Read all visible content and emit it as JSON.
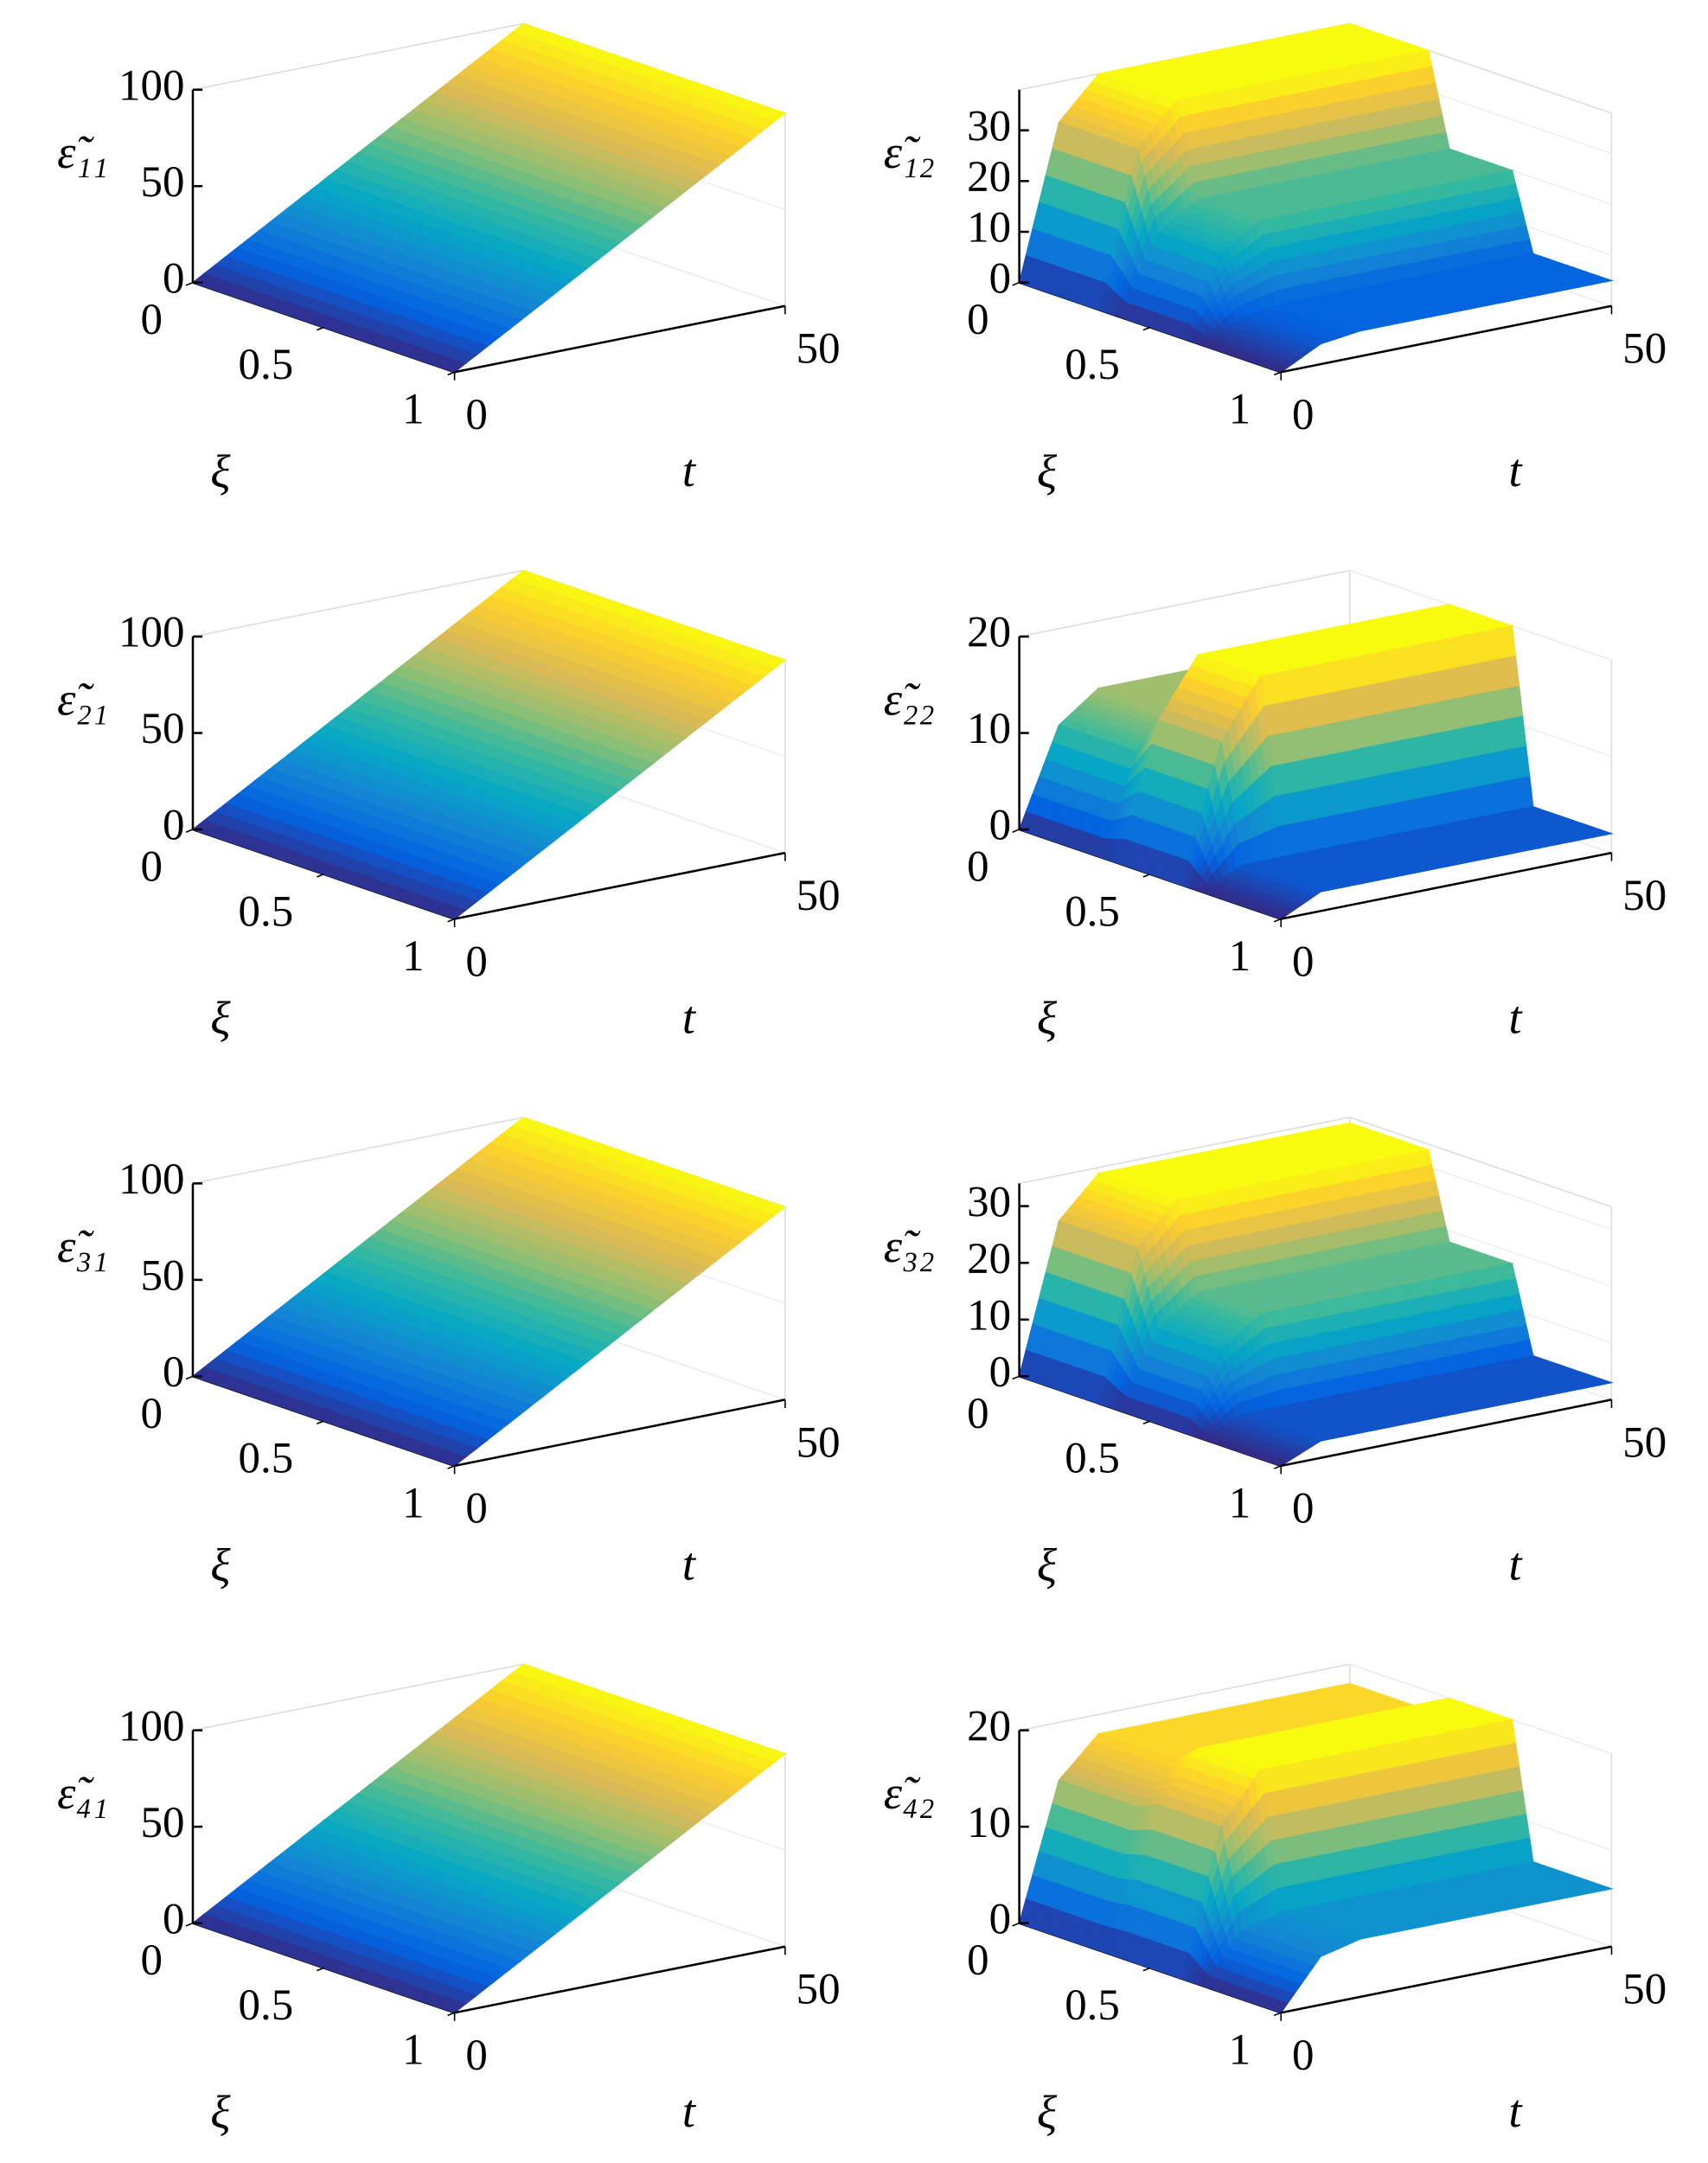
{
  "chart_data": [
    {
      "type": "surface",
      "zlabel": "ε̃₁₁",
      "xlabel": "ξ",
      "ylabel": "t",
      "xlim": [
        0,
        1
      ],
      "xticks": [
        0,
        0.5,
        1
      ],
      "ylim": [
        0,
        50
      ],
      "yticks": [
        0,
        50
      ],
      "zlim": [
        0,
        100
      ],
      "zticks": [
        0,
        50,
        100
      ],
      "x": [
        0,
        1
      ],
      "y": [
        0,
        50
      ],
      "z": [
        [
          0,
          100
        ],
        [
          0,
          100
        ]
      ]
    },
    {
      "type": "surface",
      "zlabel": "ε̃₁₂",
      "xlabel": "ξ",
      "ylabel": "t",
      "xlim": [
        0,
        1
      ],
      "xticks": [
        0,
        0.5,
        1
      ],
      "ylim": [
        0,
        50
      ],
      "yticks": [
        0,
        50
      ],
      "zlim": [
        0,
        38
      ],
      "zticks": [
        0,
        10,
        20,
        30
      ],
      "x": [
        0,
        0.3,
        0.38,
        0.62,
        0.7,
        1
      ],
      "y": [
        0,
        6,
        12,
        38,
        44,
        50
      ],
      "z": [
        [
          0,
          30,
          38,
          38,
          38,
          38
        ],
        [
          0,
          30,
          38,
          38,
          38,
          38
        ],
        [
          0,
          15,
          20,
          20,
          20,
          20
        ],
        [
          0,
          15,
          20,
          20,
          20,
          20
        ],
        [
          0,
          4,
          5,
          5,
          5,
          5
        ],
        [
          0,
          4,
          5,
          5,
          5,
          5
        ]
      ]
    },
    {
      "type": "surface",
      "zlabel": "ε̃₂₁",
      "xlabel": "ξ",
      "ylabel": "t",
      "xlim": [
        0,
        1
      ],
      "xticks": [
        0,
        0.5,
        1
      ],
      "ylim": [
        0,
        50
      ],
      "yticks": [
        0,
        50
      ],
      "zlim": [
        0,
        100
      ],
      "zticks": [
        0,
        50,
        100
      ],
      "x": [
        0,
        1
      ],
      "y": [
        0,
        50
      ],
      "z": [
        [
          0,
          100
        ],
        [
          0,
          100
        ]
      ]
    },
    {
      "type": "surface",
      "zlabel": "ε̃₂₂",
      "xlabel": "ξ",
      "ylabel": "t",
      "xlim": [
        0,
        1
      ],
      "xticks": [
        0,
        0.5,
        1
      ],
      "ylim": [
        0,
        50
      ],
      "yticks": [
        0,
        50
      ],
      "zlim": [
        0,
        20
      ],
      "zticks": [
        0,
        10,
        20
      ],
      "x": [
        0,
        0.3,
        0.38,
        0.62,
        0.7,
        1
      ],
      "y": [
        0,
        6,
        12,
        38,
        44,
        50
      ],
      "z": [
        [
          0,
          10,
          13,
          13,
          13,
          13
        ],
        [
          0,
          10,
          13,
          13,
          13,
          13
        ],
        [
          0,
          14,
          20,
          20,
          20,
          20
        ],
        [
          0,
          14,
          20,
          20,
          20,
          20
        ],
        [
          0,
          2,
          2,
          2,
          2,
          2
        ],
        [
          0,
          2,
          2,
          2,
          2,
          2
        ]
      ]
    },
    {
      "type": "surface",
      "zlabel": "ε̃₃₁",
      "xlabel": "ξ",
      "ylabel": "t",
      "xlim": [
        0,
        1
      ],
      "xticks": [
        0,
        0.5,
        1
      ],
      "ylim": [
        0,
        50
      ],
      "yticks": [
        0,
        50
      ],
      "zlim": [
        0,
        100
      ],
      "zticks": [
        0,
        50,
        100
      ],
      "x": [
        0,
        1
      ],
      "y": [
        0,
        50
      ],
      "z": [
        [
          0,
          100
        ],
        [
          0,
          100
        ]
      ]
    },
    {
      "type": "surface",
      "zlabel": "ε̃₃₂",
      "xlabel": "ξ",
      "ylabel": "t",
      "xlim": [
        0,
        1
      ],
      "xticks": [
        0,
        0.5,
        1
      ],
      "ylim": [
        0,
        50
      ],
      "yticks": [
        0,
        50
      ],
      "zlim": [
        0,
        34
      ],
      "zticks": [
        0,
        10,
        20,
        30
      ],
      "x": [
        0,
        0.3,
        0.38,
        0.62,
        0.7,
        1
      ],
      "y": [
        0,
        6,
        12,
        38,
        44,
        50
      ],
      "z": [
        [
          0,
          26,
          33,
          33,
          33,
          33
        ],
        [
          0,
          26,
          33,
          33,
          33,
          33
        ],
        [
          0,
          13,
          18,
          18,
          18,
          18
        ],
        [
          0,
          13,
          18,
          18,
          18,
          18
        ],
        [
          0,
          3,
          3,
          3,
          3,
          3
        ],
        [
          0,
          3,
          3,
          3,
          3,
          3
        ]
      ]
    },
    {
      "type": "surface",
      "zlabel": "ε̃₄₁",
      "xlabel": "ξ",
      "ylabel": "t",
      "xlim": [
        0,
        1
      ],
      "xticks": [
        0,
        0.5,
        1
      ],
      "ylim": [
        0,
        50
      ],
      "yticks": [
        0,
        50
      ],
      "zlim": [
        0,
        100
      ],
      "zticks": [
        0,
        50,
        100
      ],
      "x": [
        0,
        1
      ],
      "y": [
        0,
        50
      ],
      "z": [
        [
          0,
          100
        ],
        [
          0,
          100
        ]
      ]
    },
    {
      "type": "surface",
      "zlabel": "ε̃₄₂",
      "xlabel": "ξ",
      "ylabel": "t",
      "xlim": [
        0,
        1
      ],
      "xticks": [
        0,
        0.5,
        1
      ],
      "ylim": [
        0,
        50
      ],
      "yticks": [
        0,
        50
      ],
      "zlim": [
        0,
        20
      ],
      "zticks": [
        0,
        10,
        20
      ],
      "x": [
        0,
        0.3,
        0.38,
        0.62,
        0.7,
        1
      ],
      "y": [
        0,
        6,
        12,
        38,
        44,
        50
      ],
      "z": [
        [
          0,
          14,
          18,
          18,
          18,
          18
        ],
        [
          0,
          14,
          18,
          18,
          18,
          18
        ],
        [
          0,
          15,
          20,
          20,
          20,
          20
        ],
        [
          0,
          15,
          20,
          20,
          20,
          20
        ],
        [
          0,
          5,
          6,
          6,
          6,
          6
        ],
        [
          0,
          5,
          6,
          6,
          6,
          6
        ]
      ]
    }
  ]
}
